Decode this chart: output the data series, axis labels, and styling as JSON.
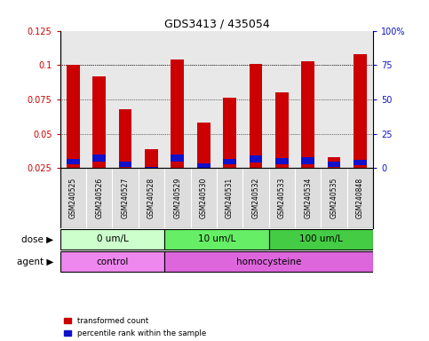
{
  "title": "GDS3413 / 435054",
  "samples": [
    "GSM240525",
    "GSM240526",
    "GSM240527",
    "GSM240528",
    "GSM240529",
    "GSM240530",
    "GSM240531",
    "GSM240532",
    "GSM240533",
    "GSM240534",
    "GSM240535",
    "GSM240848"
  ],
  "red_values": [
    0.1,
    0.092,
    0.068,
    0.039,
    0.104,
    0.058,
    0.076,
    0.101,
    0.08,
    0.103,
    0.033,
    0.108
  ],
  "blue_bottoms": [
    0.0275,
    0.03,
    0.026,
    0.0225,
    0.03,
    0.0245,
    0.0275,
    0.029,
    0.028,
    0.028,
    0.026,
    0.027
  ],
  "blue_heights": [
    0.004,
    0.005,
    0.004,
    0.003,
    0.005,
    0.004,
    0.004,
    0.005,
    0.004,
    0.005,
    0.004,
    0.004
  ],
  "ylim_min": 0.025,
  "ylim_max": 0.125,
  "yticks_left": [
    0.025,
    0.05,
    0.075,
    0.1,
    0.125
  ],
  "ytick_left_labels": [
    "0.025",
    "0.05",
    "0.075",
    "0.1",
    "0.125"
  ],
  "yticks_right_pct": [
    0,
    25,
    50,
    75,
    100
  ],
  "ytick_right_labels": [
    "0",
    "25",
    "50",
    "75",
    "100%"
  ],
  "bar_color_red": "#CC0000",
  "bar_color_blue": "#1111CC",
  "bar_width": 0.5,
  "dose_groups": [
    {
      "label": "0 um/L",
      "start": 0,
      "end": 4,
      "color": "#CCFFCC"
    },
    {
      "label": "10 um/L",
      "start": 4,
      "end": 8,
      "color": "#66EE66"
    },
    {
      "label": "100 um/L",
      "start": 8,
      "end": 12,
      "color": "#44CC44"
    }
  ],
  "agent_groups": [
    {
      "label": "control",
      "start": 0,
      "end": 4,
      "color": "#EE88EE"
    },
    {
      "label": "homocysteine",
      "start": 4,
      "end": 12,
      "color": "#DD66DD"
    }
  ],
  "dose_label": "dose",
  "agent_label": "agent",
  "legend_red": "transformed count",
  "legend_blue": "percentile rank within the sample",
  "bg_color": "#FFFFFF",
  "plot_bg": "#E8E8E8",
  "label_row_bg": "#DDDDDD"
}
